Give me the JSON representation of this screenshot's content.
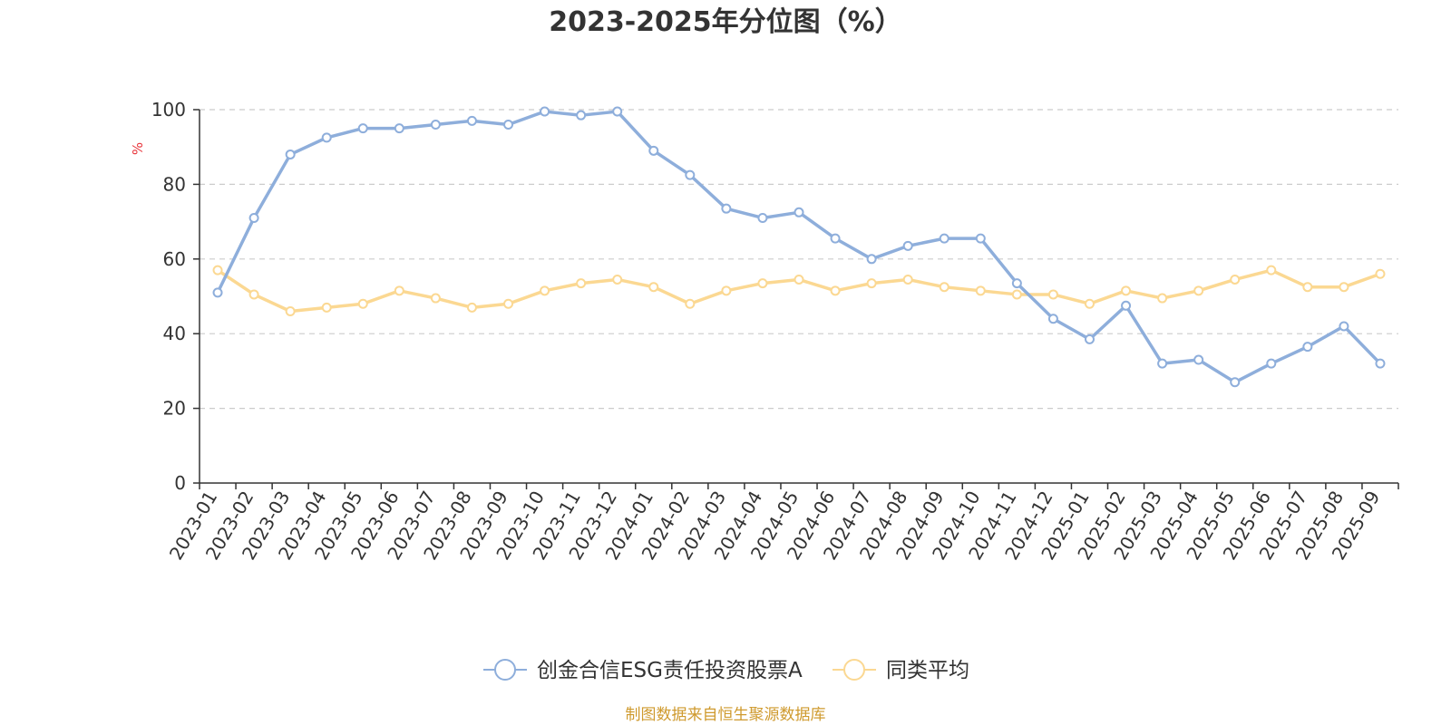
{
  "chart_data": {
    "type": "line",
    "title": "2023-2025年分位图（%）",
    "ylabel": "%",
    "xlabel": "",
    "ylim": [
      0,
      100
    ],
    "yticks": [
      0,
      20,
      40,
      60,
      80,
      100
    ],
    "grid": true,
    "legend_position": "bottom",
    "categories": [
      "2023-01",
      "2023-02",
      "2023-03",
      "2023-04",
      "2023-05",
      "2023-06",
      "2023-07",
      "2023-08",
      "2023-09",
      "2023-10",
      "2023-11",
      "2023-12",
      "2024-01",
      "2024-02",
      "2024-03",
      "2024-04",
      "2024-05",
      "2024-06",
      "2024-07",
      "2024-08",
      "2024-09",
      "2024-10",
      "2024-11",
      "2024-12",
      "2025-01",
      "2025-02",
      "2025-03",
      "2025-04",
      "2025-05",
      "2025-06",
      "2025-07",
      "2025-08",
      "2025-09"
    ],
    "series": [
      {
        "name": "创金合信ESG责任投资股票A",
        "color": "#8eaedb",
        "values": [
          51,
          71,
          88,
          92.5,
          95,
          95,
          96,
          97,
          96,
          99.5,
          98.5,
          99.5,
          89,
          82.5,
          73.5,
          71,
          72.5,
          65.5,
          60,
          63.5,
          65.5,
          65.5,
          53.5,
          44,
          38.5,
          47.5,
          32,
          33,
          27,
          32,
          36.5,
          42,
          32
        ]
      },
      {
        "name": "同类平均",
        "color": "#fbd892",
        "values": [
          57,
          50.5,
          46,
          47,
          48,
          51.5,
          49.5,
          47,
          48,
          51.5,
          53.5,
          54.5,
          52.5,
          48,
          51.5,
          53.5,
          54.5,
          51.5,
          53.5,
          54.5,
          52.5,
          51.5,
          50.5,
          50.5,
          48,
          51.5,
          49.5,
          51.5,
          54.5,
          57,
          52.5,
          52.5,
          56
        ]
      }
    ]
  },
  "source_note": "制图数据来自恒生聚源数据库",
  "colors": {
    "axis": "#333333",
    "grid": "#cccccc",
    "ylabel": "#e8343a",
    "source": "#cf9a2e"
  }
}
